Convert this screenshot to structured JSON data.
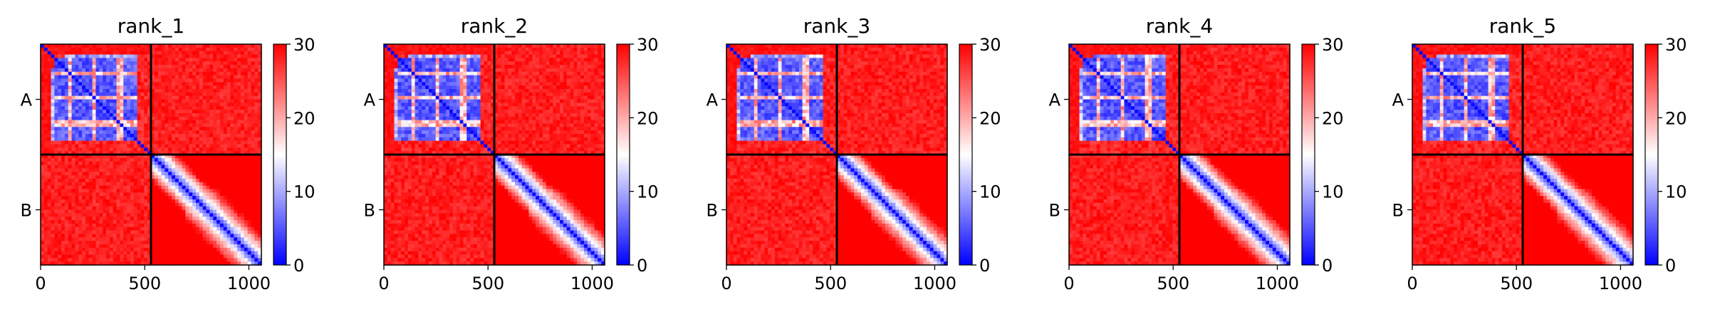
{
  "chart_data": {
    "type": "heatmap",
    "description_of_panels": "Five predicted aligned error (PAE) heatmaps, one per model rank, for a two-chain complex (chains A and B).",
    "chain_labels": [
      "A",
      "B"
    ],
    "chain_boundary": 530,
    "total_length": 1060,
    "color_scale": {
      "vmin": 0,
      "vmax": 30,
      "colors": [
        "#0000ff",
        "#ffffff",
        "#ff0000"
      ],
      "ticks": [
        0,
        10,
        20,
        30
      ]
    },
    "x_ticks": [
      0,
      500,
      1000
    ],
    "panels": [
      {
        "title": "rank_1"
      },
      {
        "title": "rank_2"
      },
      {
        "title": "rank_3"
      },
      {
        "title": "rank_4"
      },
      {
        "title": "rank_5"
      }
    ]
  }
}
